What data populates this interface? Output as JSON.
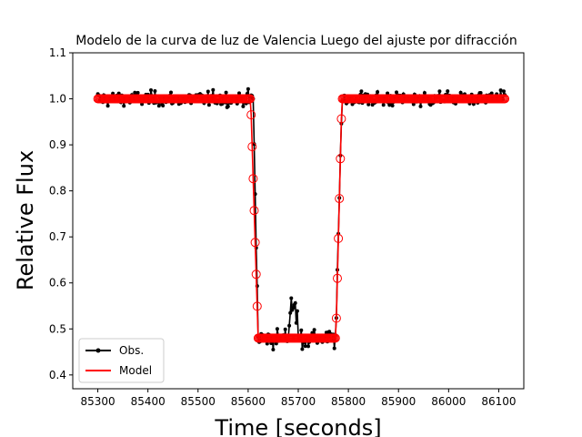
{
  "chart_data": {
    "type": "line",
    "title": "Modelo de la curva de luz de Valencia Luego del ajuste por difracción",
    "xlabel": "Time [seconds]",
    "ylabel": "Relative Flux",
    "xlim": [
      85250,
      86150
    ],
    "ylim": [
      0.37,
      1.1
    ],
    "xticks": [
      85300,
      85400,
      85500,
      85600,
      85700,
      85800,
      85900,
      86000,
      86100
    ],
    "yticks": [
      0.4,
      0.5,
      0.6,
      0.7,
      0.8,
      0.9,
      1.0,
      1.1
    ],
    "grid": false,
    "legend_position": "lower-left",
    "x_start": 85300,
    "x_end": 86112,
    "series": [
      {
        "name": "Obs.",
        "color": "#000000",
        "marker": "dot",
        "profile": {
          "out_level": 1.0,
          "in_level": 0.48,
          "ingress_start": 85610,
          "ingress_end": 85620,
          "egress_start": 85775,
          "egress_end": 85787,
          "noise_out": 0.02,
          "noise_in": 0.025
        }
      },
      {
        "name": "Model",
        "color": "#ff0000",
        "marker": "open-circle",
        "profile": {
          "out_level": 1.0,
          "in_level": 0.48,
          "ingress_start": 85605,
          "ingress_end": 85620,
          "egress_start": 85775,
          "egress_end": 85787
        }
      }
    ]
  }
}
